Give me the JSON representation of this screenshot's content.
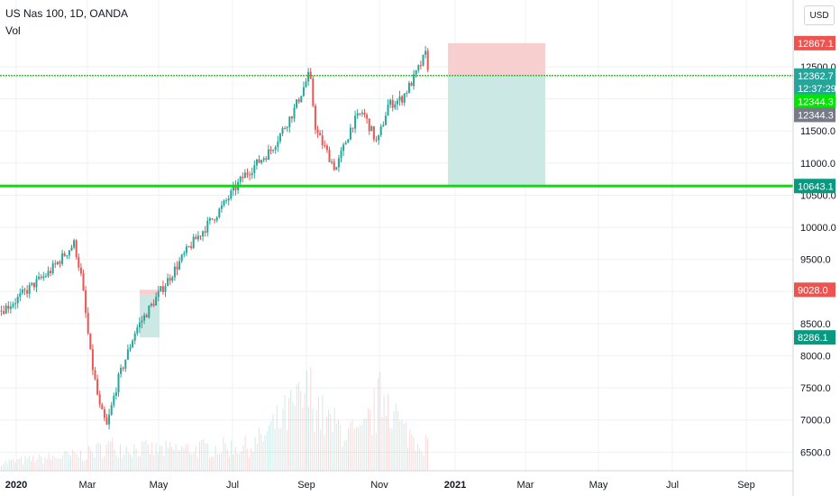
{
  "header": {
    "title": "US Nas 100, 1D, OANDA",
    "indicator": "Vol",
    "currency": "USD"
  },
  "colors": {
    "up": "#26a69a",
    "down": "#ef5350",
    "grid": "#eef0f3",
    "level": "#00e600",
    "stopZone": "#f8cfcf",
    "targetZone": "#cce8e5"
  },
  "chart_data": {
    "type": "candlestick",
    "symbol": "US Nas 100",
    "interval": "1D",
    "source": "OANDA",
    "y_ticks": [
      "6500.0",
      "7000.0",
      "7500.0",
      "8000.0",
      "8500.0",
      "9000.0",
      "9500.0",
      "10000.0",
      "10500.0",
      "11000.0",
      "11500.0",
      "12000.0",
      "12500.0"
    ],
    "x_ticks": [
      "2020",
      "Mar",
      "May",
      "Jul",
      "Sep",
      "Nov",
      "2021",
      "Mar",
      "May",
      "Jul",
      "Sep"
    ],
    "ylim": [
      6100,
      13050
    ],
    "price_path": [
      [
        0,
        8700
      ],
      [
        16,
        8850
      ],
      [
        36,
        9100
      ],
      [
        54,
        9300
      ],
      [
        82,
        9750
      ],
      [
        90,
        9200
      ],
      [
        100,
        8000
      ],
      [
        110,
        7200
      ],
      [
        118,
        6900
      ],
      [
        130,
        7600
      ],
      [
        150,
        8400
      ],
      [
        175,
        8950
      ],
      [
        210,
        9700
      ],
      [
        245,
        10300
      ],
      [
        270,
        10800
      ],
      [
        300,
        11200
      ],
      [
        325,
        11800
      ],
      [
        343,
        12400
      ],
      [
        350,
        11500
      ],
      [
        372,
        10900
      ],
      [
        390,
        11600
      ],
      [
        402,
        11800
      ],
      [
        418,
        11300
      ],
      [
        430,
        11900
      ],
      [
        445,
        12000
      ],
      [
        458,
        12300
      ],
      [
        472,
        12700
      ],
      [
        476,
        12360
      ]
    ],
    "volume_path": [
      [
        0,
        0.1
      ],
      [
        95,
        0.2
      ],
      [
        120,
        0.3
      ],
      [
        175,
        0.25
      ],
      [
        280,
        0.3
      ],
      [
        345,
        0.95
      ],
      [
        360,
        0.6
      ],
      [
        380,
        0.5
      ],
      [
        400,
        0.4
      ],
      [
        428,
        1.0
      ],
      [
        445,
        0.5
      ],
      [
        476,
        0.3
      ]
    ],
    "horizontal_levels": [
      {
        "price": 12362.7,
        "style": "dotted"
      },
      {
        "price": 10643.1,
        "style": "solid"
      }
    ],
    "position": {
      "entry": 12362.7,
      "stop": 12867.1,
      "target": 10643.1,
      "start_x": 497,
      "end_x": 605
    },
    "small_position": {
      "entry": 8950,
      "stop": 9028.0,
      "target": 8286.1
    },
    "price_labels": [
      {
        "text": "12867.1",
        "price": 12867.1,
        "color": "#ef5350"
      },
      {
        "text": "12362.7",
        "price": 12362.7,
        "color": "#26a69a"
      },
      {
        "text": "12:37:29",
        "price": 12160,
        "color": "#26a69a"
      },
      {
        "text": "12344.3",
        "price": 11960,
        "color": "#00e600"
      },
      {
        "text": "12344.3",
        "price": 11750,
        "color": "#787b86"
      },
      {
        "text": "10643.1",
        "price": 10643.1,
        "color": "#089981"
      },
      {
        "text": "9028.0",
        "price": 9028.0,
        "color": "#ef5350"
      },
      {
        "text": "8286.1",
        "price": 8286.1,
        "color": "#089981"
      }
    ]
  }
}
